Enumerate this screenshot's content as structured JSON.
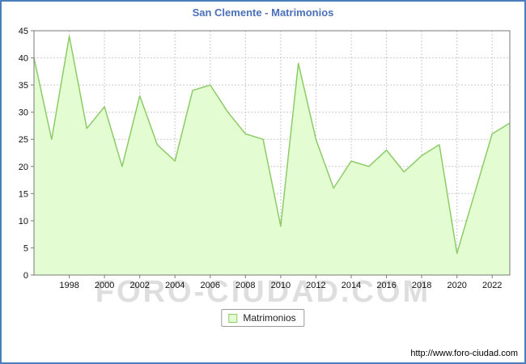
{
  "chart_data": {
    "type": "area",
    "title": "San Clemente - Matrimonios",
    "x": [
      1996,
      1997,
      1998,
      1999,
      2000,
      2001,
      2002,
      2003,
      2004,
      2005,
      2006,
      2007,
      2008,
      2009,
      2010,
      2011,
      2012,
      2013,
      2014,
      2015,
      2016,
      2017,
      2018,
      2019,
      2020,
      2021,
      2022,
      2023
    ],
    "values": [
      40,
      25,
      44,
      27,
      31,
      20,
      33,
      24,
      21,
      34,
      35,
      30,
      26,
      25,
      9,
      39,
      25,
      16,
      21,
      20,
      23,
      19,
      22,
      24,
      4,
      15,
      26,
      28
    ],
    "xticks": [
      1998,
      2000,
      2002,
      2004,
      2006,
      2008,
      2010,
      2012,
      2014,
      2016,
      2018,
      2020,
      2022
    ],
    "ylim": [
      0,
      45
    ],
    "ytick_step": 5,
    "xlabel": "",
    "ylabel": "",
    "grid": true,
    "legend_position": "bottom",
    "series_name": "Matrimonios",
    "colors": {
      "fill": "#e3fcd2",
      "line": "#8ccc66",
      "grid": "#c9c9c9",
      "frame": "#7a7a7a",
      "border": "#4a7ebc",
      "title": "#4a70b8"
    }
  },
  "legend": {
    "label": "Matrimonios"
  },
  "watermark": {
    "text": "FORO-CIUDAD.COM"
  },
  "footer": {
    "url": "http://www.foro-ciudad.com"
  }
}
